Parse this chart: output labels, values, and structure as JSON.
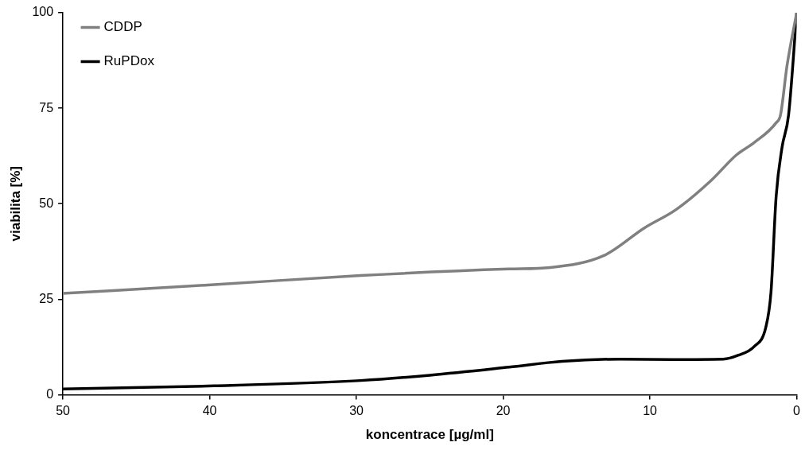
{
  "chart_data": {
    "type": "line",
    "xlabel": "koncentrace [µg/ml]",
    "ylabel": "viabilita [%]",
    "xlim": [
      50,
      0
    ],
    "xticks": [
      50,
      40,
      30,
      20,
      10,
      0
    ],
    "ylim": [
      0,
      100
    ],
    "yticks": [
      0,
      25,
      50,
      75,
      100
    ],
    "grid": false,
    "legend": "top left",
    "marker": "none",
    "line_style": "solid",
    "series": [
      {
        "name": "CDDP",
        "color": "#808080",
        "x": [
          50,
          39.7,
          29.7,
          19.6,
          16.8,
          13.1,
          10.4,
          8.2,
          5.8,
          4.1,
          2.9,
          1.4,
          1.1,
          0.66,
          0
        ],
        "values": [
          26.5,
          28.8,
          31.2,
          32.9,
          33.3,
          36.5,
          43.6,
          48.5,
          56.2,
          62.8,
          66,
          71.2,
          73.3,
          86.1,
          100
        ]
      },
      {
        "name": "RuPDox",
        "color": "#000000",
        "x": [
          50,
          39.7,
          29.7,
          25,
          19.6,
          16,
          12,
          8.5,
          5,
          4,
          2.9,
          2.1,
          1.75,
          1.4,
          1,
          0.55,
          0
        ],
        "values": [
          1.5,
          2.3,
          3.7,
          5.1,
          7.2,
          8.7,
          9.3,
          9.2,
          9.3,
          10.3,
          12.6,
          17.7,
          26.9,
          51.9,
          64.7,
          73.3,
          100
        ]
      }
    ]
  }
}
